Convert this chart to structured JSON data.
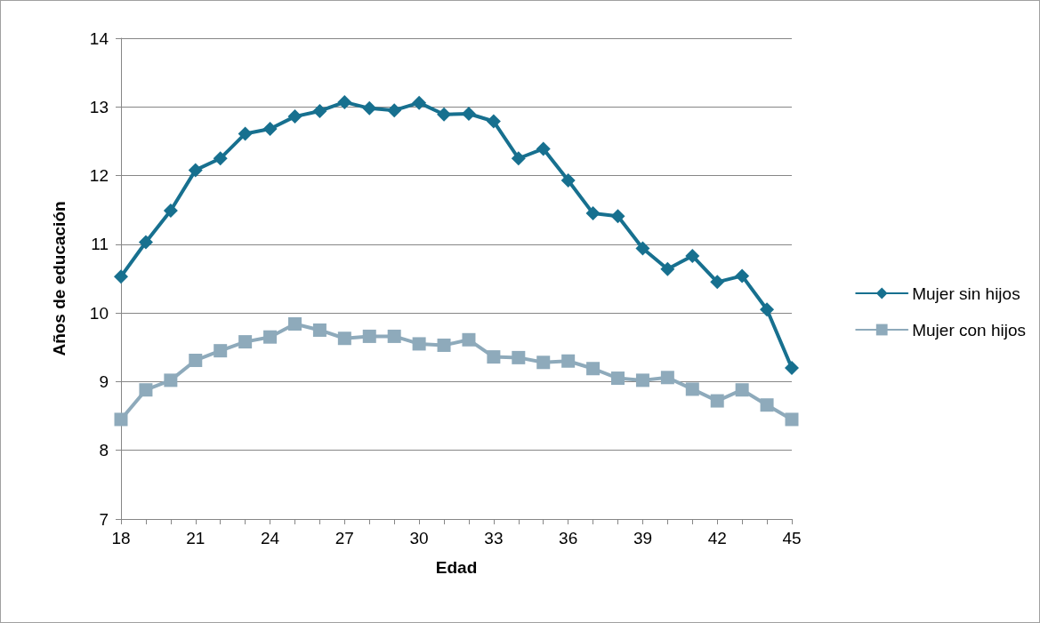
{
  "chart_data": {
    "type": "line",
    "xlabel": "Edad",
    "ylabel": "Años de educación",
    "categories": [
      "18",
      null,
      null,
      "21",
      null,
      null,
      "24",
      null,
      null,
      "27",
      null,
      null,
      "30",
      null,
      null,
      "33",
      null,
      null,
      "36",
      null,
      null,
      "39",
      null,
      null,
      "42",
      null,
      null,
      "45"
    ],
    "series": [
      {
        "name": "Mujer sin hijos",
        "color": "#17708f",
        "marker": "diamond",
        "values": [
          10.53,
          11.03,
          11.49,
          12.08,
          12.25,
          12.61,
          12.68,
          12.86,
          12.94,
          13.07,
          12.98,
          12.95,
          13.06,
          12.89,
          12.9,
          12.79,
          12.25,
          12.39,
          11.93,
          11.45,
          11.41,
          10.94,
          10.64,
          10.83,
          10.45,
          10.54,
          10.05,
          9.2
        ]
      },
      {
        "name": "Mujer con hijos",
        "color": "#8eaabb",
        "marker": "square",
        "values": [
          8.45,
          8.88,
          9.02,
          9.31,
          9.45,
          9.58,
          9.65,
          9.84,
          9.75,
          9.63,
          9.66,
          9.66,
          9.55,
          9.53,
          9.61,
          9.36,
          9.35,
          9.28,
          9.3,
          9.19,
          9.05,
          9.02,
          9.06,
          8.89,
          8.72,
          8.88,
          8.66,
          8.45
        ]
      }
    ],
    "ylim": [
      7,
      14
    ],
    "yticks": [
      7,
      8,
      9,
      10,
      11,
      12,
      13,
      14
    ],
    "grid": "y",
    "legend": "right",
    "line_style": "solid"
  }
}
